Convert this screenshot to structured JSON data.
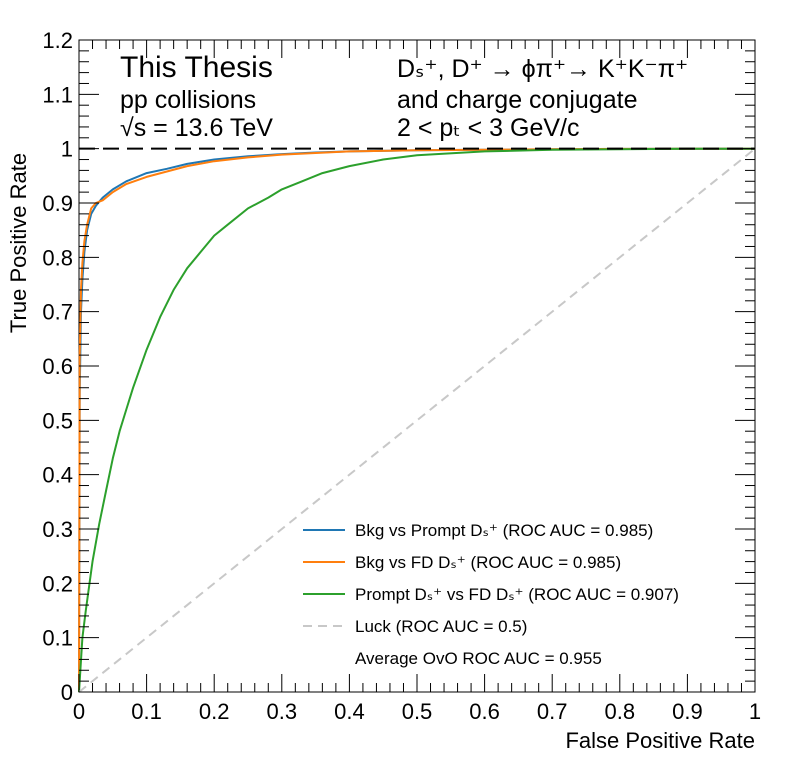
{
  "chart_data": {
    "type": "line",
    "xlabel": "False Positive Rate",
    "ylabel": "True Positive Rate",
    "xlim": [
      0,
      1
    ],
    "ylim": [
      0,
      1.2
    ],
    "xticks": [
      "0",
      "0.1",
      "0.2",
      "0.3",
      "0.4",
      "0.5",
      "0.6",
      "0.7",
      "0.8",
      "0.9",
      "1"
    ],
    "yticks": [
      "0",
      "0.1",
      "0.2",
      "0.3",
      "0.4",
      "0.5",
      "0.6",
      "0.7",
      "0.8",
      "0.9",
      "1",
      "1.1",
      "1.2"
    ],
    "reference_line_y": 1,
    "annotations": {
      "left": [
        "This Thesis",
        "pp collisions",
        "√s = 13.6 TeV"
      ],
      "right": [
        "Dₛ⁺, D⁺ → ϕπ⁺→ K⁺K⁻π⁺",
        "and charge conjugate",
        "2 < pₜ < 3 GeV/c"
      ]
    },
    "series": [
      {
        "name": "Bkg vs Prompt Dₛ⁺ (ROC AUC = 0.985)",
        "color": "#1f77b4",
        "x": [
          0,
          0.001,
          0.003,
          0.005,
          0.008,
          0.012,
          0.018,
          0.025,
          0.035,
          0.05,
          0.07,
          0.1,
          0.13,
          0.16,
          0.2,
          0.25,
          0.3,
          0.35,
          0.4,
          0.5,
          0.6,
          0.7,
          0.8,
          0.9,
          1
        ],
        "y": [
          0,
          0.55,
          0.7,
          0.76,
          0.81,
          0.85,
          0.88,
          0.895,
          0.91,
          0.925,
          0.94,
          0.955,
          0.963,
          0.972,
          0.98,
          0.986,
          0.99,
          0.993,
          0.995,
          0.997,
          0.998,
          0.999,
          0.9995,
          1,
          1
        ]
      },
      {
        "name": "Bkg vs FD Dₛ⁺ (ROC AUC = 0.985)",
        "color": "#ff7f0e",
        "x": [
          0,
          0.001,
          0.003,
          0.005,
          0.008,
          0.012,
          0.018,
          0.025,
          0.035,
          0.05,
          0.07,
          0.1,
          0.13,
          0.16,
          0.2,
          0.25,
          0.3,
          0.35,
          0.4,
          0.5,
          0.6,
          0.7,
          0.8,
          0.9,
          1
        ],
        "y": [
          0,
          0.62,
          0.74,
          0.79,
          0.83,
          0.86,
          0.89,
          0.9,
          0.905,
          0.92,
          0.935,
          0.948,
          0.958,
          0.968,
          0.977,
          0.984,
          0.989,
          0.992,
          0.995,
          0.997,
          0.998,
          0.999,
          0.9995,
          1,
          1
        ]
      },
      {
        "name": "Prompt Dₛ⁺ vs FD Dₛ⁺ (ROC AUC = 0.907)",
        "color": "#2ca02c",
        "x": [
          0,
          0.005,
          0.01,
          0.02,
          0.03,
          0.04,
          0.05,
          0.06,
          0.07,
          0.08,
          0.1,
          0.12,
          0.14,
          0.16,
          0.18,
          0.2,
          0.22,
          0.25,
          0.28,
          0.3,
          0.33,
          0.36,
          0.4,
          0.45,
          0.5,
          0.6,
          0.7,
          0.8,
          0.9,
          1
        ],
        "y": [
          0,
          0.1,
          0.15,
          0.24,
          0.31,
          0.37,
          0.43,
          0.48,
          0.52,
          0.56,
          0.63,
          0.69,
          0.74,
          0.78,
          0.81,
          0.84,
          0.86,
          0.89,
          0.91,
          0.925,
          0.94,
          0.955,
          0.968,
          0.98,
          0.988,
          0.995,
          0.998,
          0.999,
          1,
          1
        ]
      },
      {
        "name": "Luck (ROC AUC = 0.5)",
        "color": "#c8c8c8",
        "dashed": true,
        "x": [
          0,
          1
        ],
        "y": [
          0,
          1
        ]
      }
    ],
    "legend_extra": "Average OvO ROC AUC = 0.955",
    "legend_position": "bottom-right"
  }
}
